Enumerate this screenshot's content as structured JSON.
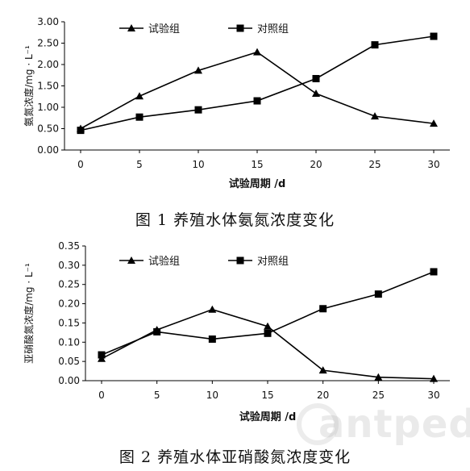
{
  "chart_data": [
    {
      "type": "line",
      "caption": "图 1   养殖水体氨氮浓度变化",
      "xlabel": "试验周期 /d",
      "ylabel": "氨氮浓度/mg · L⁻¹",
      "categories": [
        "0",
        "5",
        "10",
        "15",
        "20",
        "25",
        "30"
      ],
      "ylim": [
        0,
        3.0
      ],
      "yticks": [
        "0.00",
        "0.50",
        "1.00",
        "1.50",
        "2.00",
        "2.50",
        "3.00"
      ],
      "legend_position": "top-left",
      "series": [
        {
          "name": "试验组",
          "marker": "triangle",
          "values": [
            0.5,
            1.26,
            1.86,
            2.29,
            1.32,
            0.79,
            0.62
          ]
        },
        {
          "name": "对照组",
          "marker": "square",
          "values": [
            0.46,
            0.77,
            0.94,
            1.15,
            1.67,
            2.46,
            2.66
          ]
        }
      ],
      "grid": false
    },
    {
      "type": "line",
      "caption": "图 2   养殖水体亚硝酸氮浓度变化",
      "xlabel": "试验周期 /d",
      "ylabel": "亚硝酸氮浓度/mg · L⁻¹",
      "categories": [
        "0",
        "5",
        "10",
        "15",
        "20",
        "25",
        "30"
      ],
      "ylim": [
        0,
        0.35
      ],
      "yticks": [
        "0.00",
        "0.05",
        "0.10",
        "0.15",
        "0.20",
        "0.25",
        "0.30",
        "0.35"
      ],
      "legend_position": "top-left",
      "series": [
        {
          "name": "试验组",
          "marker": "triangle",
          "values": [
            0.057,
            0.132,
            0.185,
            0.141,
            0.027,
            0.009,
            0.005
          ]
        },
        {
          "name": "对照组",
          "marker": "square",
          "values": [
            0.067,
            0.127,
            0.108,
            0.123,
            0.187,
            0.225,
            0.283
          ]
        }
      ],
      "grid": false
    }
  ],
  "watermark": "antpedia"
}
